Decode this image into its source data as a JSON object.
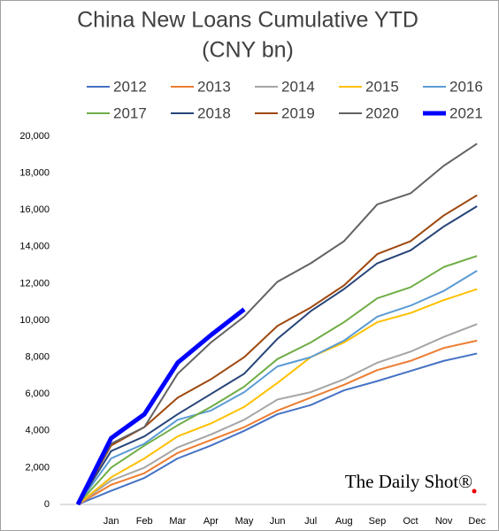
{
  "chart_data": {
    "type": "line",
    "title": "China New Loans Cumulative YTD",
    "subtitle": "(CNY bn)",
    "watermark": "The Daily Shot®",
    "categories": [
      null,
      "Jan",
      "Feb",
      "Mar",
      "Apr",
      "May",
      "Jun",
      "Jul",
      "Aug",
      "Sep",
      "Oct",
      "Nov",
      "Dec"
    ],
    "ylim": [
      0,
      20000
    ],
    "yticks": [
      0,
      {
        "value": 2000,
        "label": "2,000"
      },
      {
        "value": 4000,
        "label": "4,000"
      },
      {
        "value": 6000,
        "label": "6,000"
      },
      {
        "value": 8000,
        "label": "8,000"
      },
      {
        "value": 10000,
        "label": "10,000"
      },
      {
        "value": 12000,
        "label": "12,000"
      },
      {
        "value": 14000,
        "label": "14,000"
      },
      {
        "value": 16000,
        "label": "16,000"
      },
      {
        "value": 18000,
        "label": "18,000"
      },
      {
        "value": 20000,
        "label": "20,000"
      }
    ],
    "grid": false,
    "series": [
      {
        "name": "2012",
        "color": "#4472c4",
        "values": [
          0,
          740,
          1440,
          2500,
          3200,
          4000,
          4900,
          5400,
          6200,
          6700,
          7250,
          7800,
          8200
        ]
      },
      {
        "name": "2013",
        "color": "#ed7d31",
        "values": [
          0,
          1070,
          1700,
          2800,
          3500,
          4200,
          5100,
          5800,
          6500,
          7300,
          7800,
          8500,
          8900
        ]
      },
      {
        "name": "2014",
        "color": "#a5a5a5",
        "values": [
          0,
          1300,
          2000,
          3100,
          3800,
          4600,
          5700,
          6100,
          6800,
          7700,
          8300,
          9100,
          9800
        ]
      },
      {
        "name": "2015",
        "color": "#ffc000",
        "values": [
          0,
          1470,
          2500,
          3700,
          4400,
          5300,
          6600,
          8000,
          8800,
          9900,
          10400,
          11100,
          11700
        ]
      },
      {
        "name": "2016",
        "color": "#5b9bd5",
        "values": [
          0,
          2500,
          3300,
          4600,
          5100,
          6100,
          7500,
          8000,
          8900,
          10200,
          10800,
          11600,
          12700
        ]
      },
      {
        "name": "2017",
        "color": "#70ad47",
        "values": [
          0,
          2000,
          3200,
          4300,
          5300,
          6400,
          7900,
          8800,
          9900,
          11200,
          11800,
          12900,
          13500
        ]
      },
      {
        "name": "2018",
        "color": "#264478",
        "values": [
          0,
          2900,
          3700,
          4900,
          6000,
          7100,
          9000,
          10500,
          11700,
          13100,
          13800,
          15100,
          16200
        ]
      },
      {
        "name": "2019",
        "color": "#9e480e",
        "values": [
          0,
          3200,
          4200,
          5800,
          6800,
          8000,
          9700,
          10700,
          11900,
          13600,
          14300,
          15700,
          16800
        ]
      },
      {
        "name": "2020",
        "color": "#636363",
        "values": [
          0,
          3300,
          4200,
          7100,
          8800,
          10200,
          12100,
          13100,
          14300,
          16300,
          16900,
          18400,
          19600
        ]
      },
      {
        "name": "2021",
        "color": "#0000ff",
        "values": [
          0,
          3600,
          4900,
          7700,
          9200,
          10600,
          null,
          null,
          null,
          null,
          null,
          null,
          null
        ]
      }
    ]
  }
}
